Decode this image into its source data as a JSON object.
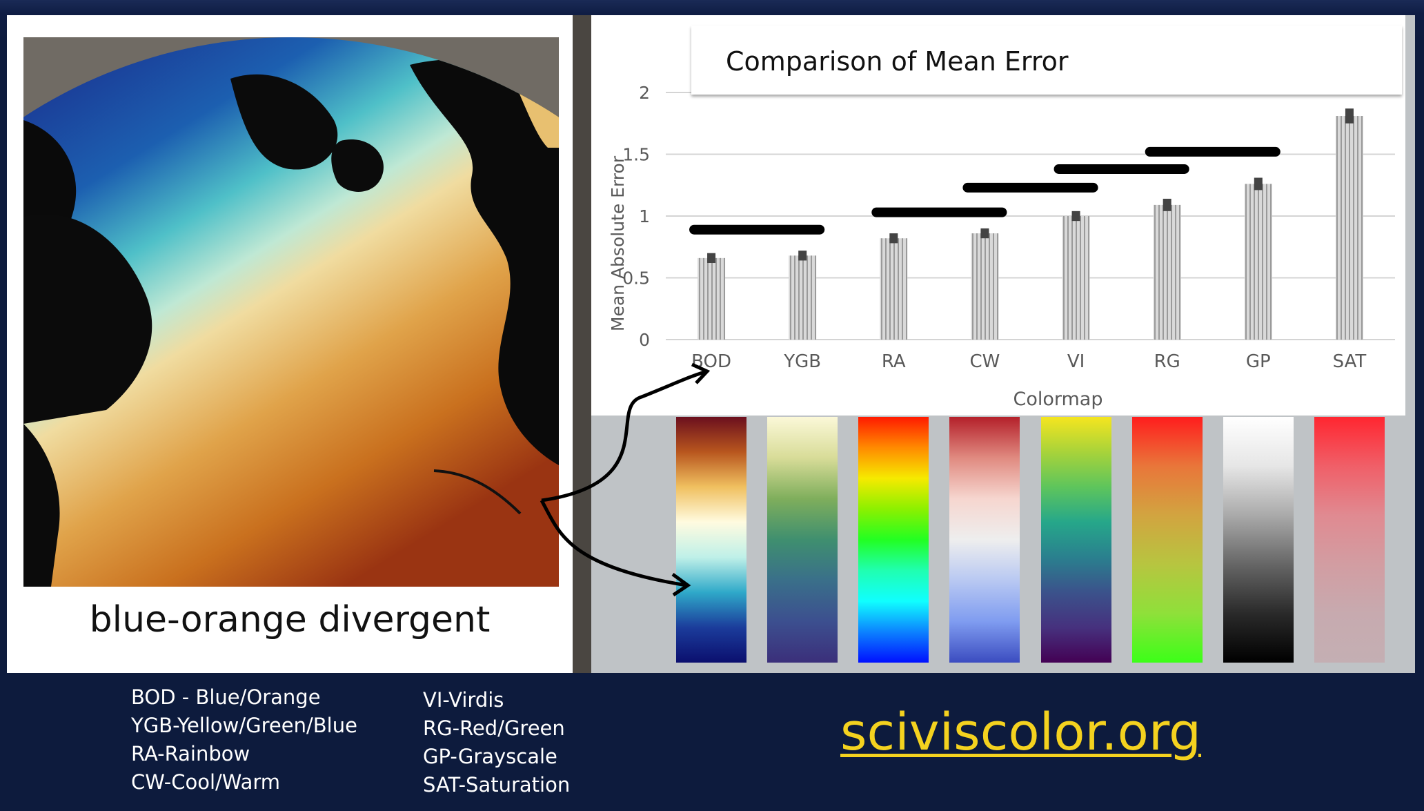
{
  "left_panel": {
    "caption": "blue-orange divergent"
  },
  "chart_data": {
    "type": "bar",
    "title": "Comparison of Mean Error",
    "xlabel": "Colormap",
    "ylabel": "Mean Absolute Error",
    "categories": [
      "BOD",
      "YGB",
      "RA",
      "CW",
      "VI",
      "RG",
      "GP",
      "SAT"
    ],
    "values": [
      0.66,
      0.68,
      0.82,
      0.86,
      1.0,
      1.09,
      1.26,
      1.81
    ],
    "error": [
      0.04,
      0.04,
      0.04,
      0.04,
      0.04,
      0.05,
      0.05,
      0.06
    ],
    "ylim": [
      0,
      2
    ],
    "yticks": [
      "0",
      "0.5",
      "1",
      "1.5",
      "2"
    ],
    "ytick_values": [
      0,
      0.5,
      1,
      1.5,
      2
    ],
    "grid": true,
    "significance_bars": [
      {
        "from": 0,
        "to": 1,
        "y": 0.89
      },
      {
        "from": 2,
        "to": 3,
        "y": 1.03
      },
      {
        "from": 3,
        "to": 4,
        "y": 1.23
      },
      {
        "from": 4,
        "to": 5,
        "y": 1.38
      },
      {
        "from": 5,
        "to": 6,
        "y": 1.52
      }
    ]
  },
  "colormaps": [
    {
      "name": "BOD",
      "stops": [
        "#6b0f1e",
        "#b8561e",
        "#f0c060",
        "#fffbe0",
        "#bff0e8",
        "#2fa9c9",
        "#1b3c9b",
        "#0b0f6e"
      ]
    },
    {
      "name": "YGB",
      "stops": [
        "#fbf8d8",
        "#d8dc98",
        "#7fae5c",
        "#3f8f6f",
        "#3a6f8a",
        "#3c4f8f",
        "#3b2f7a"
      ]
    },
    {
      "name": "RA",
      "stops": [
        "#ff1a00",
        "#ff8a00",
        "#f6ea00",
        "#8cf000",
        "#22ff22",
        "#20ffb0",
        "#10ffff",
        "#0c82ff",
        "#0010ff"
      ]
    },
    {
      "name": "CW",
      "stops": [
        "#b4202a",
        "#e08a80",
        "#f6d6cf",
        "#eeeeee",
        "#b8c8f2",
        "#7f9cf0",
        "#3b4cc0"
      ]
    },
    {
      "name": "VI",
      "stops": [
        "#f5e51f",
        "#a8d33a",
        "#5ec55c",
        "#26a78a",
        "#2a808e",
        "#3b528b",
        "#46317e",
        "#440154"
      ]
    },
    {
      "name": "RG",
      "stops": [
        "#ff1d1d",
        "#e9763a",
        "#d2a440",
        "#b7c540",
        "#8fe03a",
        "#3cff18"
      ]
    },
    {
      "name": "GP",
      "stops": [
        "#ffffff",
        "#e6e6e6",
        "#aaaaaa",
        "#666666",
        "#2a2a2a",
        "#000000"
      ]
    },
    {
      "name": "SAT",
      "stops": [
        "#ff2630",
        "#f05f68",
        "#e08a91",
        "#d29da2",
        "#c7aaaf",
        "#c4afb3"
      ]
    }
  ],
  "legend": {
    "left": [
      "BOD - Blue/Orange",
      "YGB-Yellow/Green/Blue",
      "RA-Rainbow",
      "CW-Cool/Warm"
    ],
    "right": [
      "VI-Virdis",
      "RG-Red/Green",
      "GP-Grayscale",
      "SAT-Saturation"
    ]
  },
  "site": "sciviscolor.org"
}
